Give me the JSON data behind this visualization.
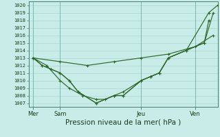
{
  "background_color": "#c8ece8",
  "grid_color": "#a8ccc8",
  "line_color": "#2d6628",
  "title": "Pression niveau de la mer( hPa )",
  "day_labels": [
    "Mer",
    "Sam",
    "Jeu",
    "Ven"
  ],
  "day_positions": [
    0,
    3,
    12,
    18
  ],
  "xlim": [
    -0.5,
    20.5
  ],
  "ylim_low": 1006.5,
  "ylim_high": 1020.5,
  "series": [
    {
      "x": [
        0,
        1,
        2,
        3,
        4,
        5,
        7,
        9,
        10,
        12,
        13,
        14,
        15,
        17,
        19,
        20
      ],
      "y": [
        1013,
        1012,
        1011.5,
        1011,
        1010,
        1008.5,
        1007,
        1008,
        1008,
        1010,
        1010.5,
        1011,
        1013,
        1014,
        1015,
        1019
      ]
    },
    {
      "x": [
        0,
        1,
        2,
        3,
        4,
        5,
        7,
        9,
        10,
        12,
        13,
        14,
        15,
        17,
        19.5,
        20.5
      ],
      "y": [
        1013,
        1012,
        1011.5,
        1011,
        1010,
        1008.5,
        1007,
        1008,
        1008,
        1010,
        1010.5,
        1011,
        1013,
        1014,
        1019,
        1020
      ]
    },
    {
      "x": [
        0,
        1.5,
        3,
        4,
        5.5,
        7,
        8,
        9,
        10,
        12,
        13,
        14,
        15,
        17,
        19,
        19.5
      ],
      "y": [
        1013,
        1012,
        1010,
        1009,
        1008,
        1007.5,
        1007.5,
        1008,
        1008.5,
        1010,
        1010.5,
        1011,
        1013,
        1014,
        1015,
        1018
      ]
    },
    {
      "x": [
        0,
        3,
        6,
        9,
        12,
        15,
        18,
        20
      ],
      "y": [
        1013,
        1012.5,
        1012,
        1012.5,
        1013,
        1013.5,
        1014.5,
        1016
      ]
    }
  ]
}
